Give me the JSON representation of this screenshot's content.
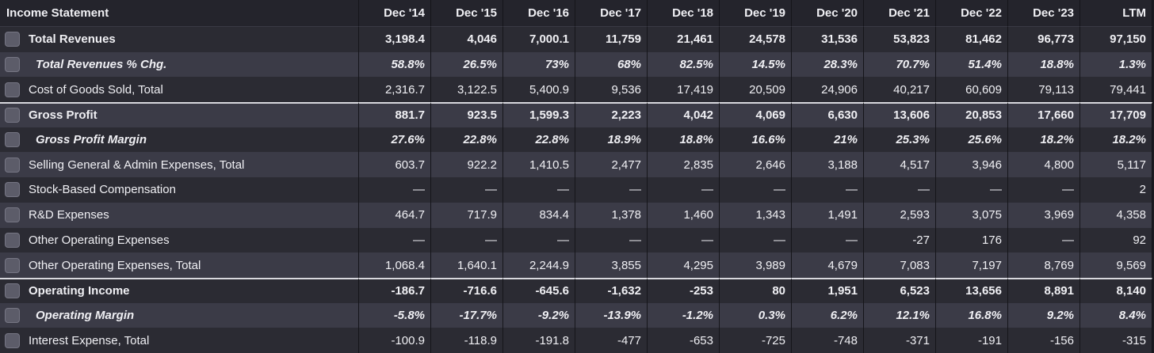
{
  "header": {
    "title": "Income Statement",
    "columns": [
      "Dec '14",
      "Dec '15",
      "Dec '16",
      "Dec '17",
      "Dec '18",
      "Dec '19",
      "Dec '20",
      "Dec '21",
      "Dec '22",
      "Dec '23",
      "LTM"
    ]
  },
  "rows": [
    {
      "label": "Total Revenues",
      "style": "bold",
      "values": [
        "3,198.4",
        "4,046",
        "7,000.1",
        "11,759",
        "21,461",
        "24,578",
        "31,536",
        "53,823",
        "81,462",
        "96,773",
        "97,150"
      ]
    },
    {
      "label": "Total Revenues % Chg.",
      "style": "italic",
      "values": [
        "58.8%",
        "26.5%",
        "73%",
        "68%",
        "82.5%",
        "14.5%",
        "28.3%",
        "70.7%",
        "51.4%",
        "18.8%",
        "1.3%"
      ]
    },
    {
      "label": "Cost of Goods Sold, Total",
      "style": "normal",
      "values": [
        "2,316.7",
        "3,122.5",
        "5,400.9",
        "9,536",
        "17,419",
        "20,509",
        "24,906",
        "40,217",
        "60,609",
        "79,113",
        "79,441"
      ]
    },
    {
      "label": "Gross Profit",
      "style": "bold",
      "topline": true,
      "values": [
        "881.7",
        "923.5",
        "1,599.3",
        "2,223",
        "4,042",
        "4,069",
        "6,630",
        "13,606",
        "20,853",
        "17,660",
        "17,709"
      ]
    },
    {
      "label": "Gross Profit Margin",
      "style": "italic",
      "values": [
        "27.6%",
        "22.8%",
        "22.8%",
        "18.9%",
        "18.8%",
        "16.6%",
        "21%",
        "25.3%",
        "25.6%",
        "18.2%",
        "18.2%"
      ]
    },
    {
      "label": "Selling General & Admin Expenses, Total",
      "style": "normal",
      "values": [
        "603.7",
        "922.2",
        "1,410.5",
        "2,477",
        "2,835",
        "2,646",
        "3,188",
        "4,517",
        "3,946",
        "4,800",
        "5,117"
      ]
    },
    {
      "label": "Stock-Based Compensation",
      "style": "normal",
      "values": [
        "—",
        "—",
        "—",
        "—",
        "—",
        "—",
        "—",
        "—",
        "—",
        "—",
        "2"
      ]
    },
    {
      "label": "R&D Expenses",
      "style": "normal",
      "values": [
        "464.7",
        "717.9",
        "834.4",
        "1,378",
        "1,460",
        "1,343",
        "1,491",
        "2,593",
        "3,075",
        "3,969",
        "4,358"
      ]
    },
    {
      "label": "Other Operating Expenses",
      "style": "normal",
      "values": [
        "—",
        "—",
        "—",
        "—",
        "—",
        "—",
        "—",
        "-27",
        "176",
        "—",
        "92"
      ]
    },
    {
      "label": "Other Operating Expenses, Total",
      "style": "normal",
      "values": [
        "1,068.4",
        "1,640.1",
        "2,244.9",
        "3,855",
        "4,295",
        "3,989",
        "4,679",
        "7,083",
        "7,197",
        "8,769",
        "9,569"
      ]
    },
    {
      "label": "Operating Income",
      "style": "bold",
      "topline": true,
      "values": [
        "-186.7",
        "-716.6",
        "-645.6",
        "-1,632",
        "-253",
        "80",
        "1,951",
        "6,523",
        "13,656",
        "8,891",
        "8,140"
      ]
    },
    {
      "label": "Operating Margin",
      "style": "italic",
      "values": [
        "-5.8%",
        "-17.7%",
        "-9.2%",
        "-13.9%",
        "-1.2%",
        "0.3%",
        "6.2%",
        "12.1%",
        "16.8%",
        "9.2%",
        "8.4%"
      ]
    },
    {
      "label": "Interest Expense, Total",
      "style": "normal",
      "values": [
        "-100.9",
        "-118.9",
        "-191.8",
        "-477",
        "-653",
        "-725",
        "-748",
        "-371",
        "-191",
        "-156",
        "-315"
      ]
    }
  ]
}
